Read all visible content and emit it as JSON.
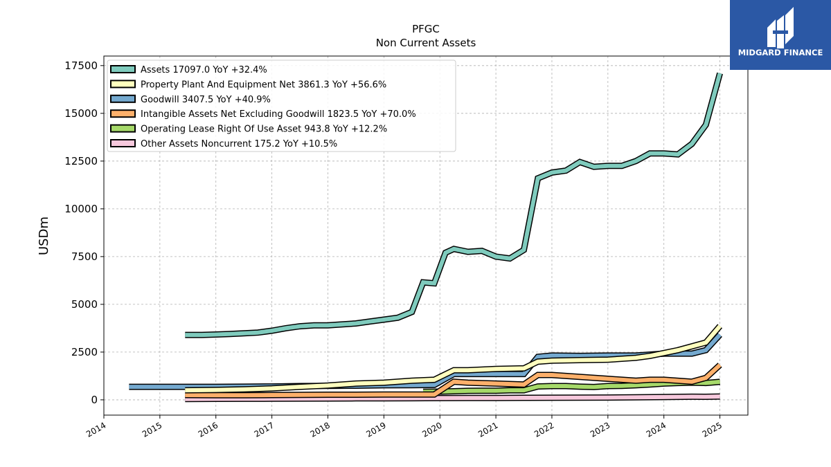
{
  "logo": {
    "text": "MIDGARD FINANCE",
    "bg": "#2b58a5"
  },
  "chart_data": {
    "type": "line",
    "title": "PFGC",
    "subtitle": "Non Current  Assets",
    "ylabel": "USDm",
    "xlabel": "",
    "xlim": [
      2014.0,
      2025.5
    ],
    "ylim": [
      -800,
      18000
    ],
    "xticks": [
      2014,
      2015,
      2016,
      2017,
      2018,
      2019,
      2020,
      2021,
      2022,
      2023,
      2024,
      2025
    ],
    "yticks": [
      0,
      2500,
      5000,
      7500,
      10000,
      12500,
      15000,
      17500
    ],
    "grid": true,
    "legend_position": "top-left",
    "series": [
      {
        "name": "Other Assets Noncurrent",
        "legend": "Other Assets Noncurrent  175.2 YoY +10.5%",
        "color": "#f7c9dd",
        "x": [
          2015.45,
          2016.0,
          2016.5,
          2017.0,
          2017.5,
          2018.0,
          2018.5,
          2019.0,
          2019.5,
          2020.0,
          2020.5,
          2021.0,
          2021.5,
          2022.0,
          2022.5,
          2023.0,
          2023.5,
          2024.0,
          2024.5,
          2024.75,
          2025.0
        ],
        "y": [
          40,
          50,
          55,
          60,
          65,
          70,
          75,
          80,
          85,
          90,
          95,
          100,
          105,
          110,
          115,
          120,
          130,
          145,
          165,
          160,
          175
        ]
      },
      {
        "name": "Operating Lease Right Of Use Asset",
        "legend": "Operating Lease Right Of Use Asset  943.8 YoY +12.2%",
        "color": "#a6d96a",
        "x": [
          2019.7,
          2020.0,
          2020.25,
          2020.5,
          2020.75,
          2021.0,
          2021.25,
          2021.5,
          2021.75,
          2022.0,
          2022.25,
          2022.5,
          2022.75,
          2023.0,
          2023.25,
          2023.5,
          2023.75,
          2024.0,
          2024.25,
          2024.5,
          2024.75,
          2025.0
        ],
        "y": [
          420,
          430,
          450,
          470,
          480,
          480,
          500,
          500,
          700,
          720,
          720,
          690,
          670,
          720,
          730,
          760,
          800,
          850,
          880,
          900,
          880,
          944
        ]
      },
      {
        "name": "Intangible Assets Net Excluding Goodwill",
        "legend": "Intangible Assets Net Excluding Goodwill  1823.5 YoY +70.0%",
        "color": "#fdb06b",
        "x": [
          2015.45,
          2016.0,
          2016.5,
          2017.0,
          2017.5,
          2018.0,
          2018.5,
          2019.0,
          2019.5,
          2019.9,
          2020.25,
          2020.5,
          2021.0,
          2021.5,
          2021.75,
          2022.0,
          2022.5,
          2023.0,
          2023.5,
          2023.75,
          2024.0,
          2024.5,
          2024.75,
          2025.0
        ],
        "y": [
          250,
          240,
          240,
          250,
          260,
          270,
          270,
          280,
          280,
          280,
          950,
          900,
          850,
          800,
          1300,
          1300,
          1200,
          1100,
          1000,
          1050,
          1050,
          950,
          1150,
          1824
        ]
      },
      {
        "name": "Goodwill",
        "legend": "Goodwill  3407.5 YoY +40.9%",
        "color": "#74a9cf",
        "x": [
          2014.45,
          2015.0,
          2015.5,
          2016.0,
          2016.5,
          2017.0,
          2017.5,
          2018.0,
          2018.5,
          2019.0,
          2019.5,
          2019.9,
          2020.25,
          2020.5,
          2021.0,
          2021.5,
          2021.75,
          2022.0,
          2022.5,
          2023.0,
          2023.5,
          2024.0,
          2024.5,
          2024.75,
          2025.0
        ],
        "y": [
          680,
          680,
          680,
          680,
          690,
          700,
          720,
          730,
          740,
          760,
          770,
          780,
          1350,
          1350,
          1350,
          1350,
          2250,
          2320,
          2300,
          2320,
          2320,
          2420,
          2420,
          2600,
          3408
        ]
      },
      {
        "name": "Property Plant And Equipment Net",
        "legend": "Property Plant And Equipment Net  3861.3 YoY +56.6%",
        "color": "#ffffbf",
        "x": [
          2015.45,
          2016.0,
          2016.5,
          2017.0,
          2017.5,
          2018.0,
          2018.5,
          2019.0,
          2019.5,
          2019.9,
          2020.25,
          2020.5,
          2021.0,
          2021.5,
          2021.75,
          2022.0,
          2022.5,
          2023.0,
          2023.5,
          2023.75,
          2024.0,
          2024.25,
          2024.5,
          2024.75,
          2025.0
        ],
        "y": [
          500,
          520,
          550,
          600,
          680,
          750,
          850,
          900,
          1000,
          1050,
          1550,
          1550,
          1620,
          1650,
          2000,
          2050,
          2080,
          2100,
          2200,
          2300,
          2450,
          2600,
          2800,
          3000,
          3861
        ]
      },
      {
        "name": "Assets",
        "legend": "Assets  17097.0 YoY +32.4%",
        "color": "#7fcbbd",
        "x": [
          2015.45,
          2015.75,
          2016.0,
          2016.25,
          2016.5,
          2016.75,
          2017.0,
          2017.25,
          2017.5,
          2017.75,
          2018.0,
          2018.25,
          2018.5,
          2018.75,
          2019.0,
          2019.25,
          2019.5,
          2019.7,
          2019.9,
          2020.1,
          2020.25,
          2020.5,
          2020.75,
          2021.0,
          2021.25,
          2021.5,
          2021.75,
          2022.0,
          2022.25,
          2022.5,
          2022.75,
          2023.0,
          2023.25,
          2023.5,
          2023.75,
          2024.0,
          2024.25,
          2024.5,
          2024.75,
          2025.0
        ],
        "y": [
          3400,
          3400,
          3420,
          3450,
          3480,
          3520,
          3620,
          3750,
          3850,
          3900,
          3900,
          3950,
          4000,
          4100,
          4200,
          4300,
          4600,
          6150,
          6100,
          7700,
          7900,
          7750,
          7800,
          7500,
          7400,
          7850,
          11600,
          11900,
          12000,
          12450,
          12200,
          12250,
          12250,
          12500,
          12900,
          12900,
          12850,
          13400,
          14400,
          17097
        ]
      }
    ],
    "legend_order": [
      "Assets",
      "Property Plant And Equipment Net",
      "Goodwill",
      "Intangible Assets Net Excluding Goodwill",
      "Operating Lease Right Of Use Asset",
      "Other Assets Noncurrent"
    ]
  }
}
